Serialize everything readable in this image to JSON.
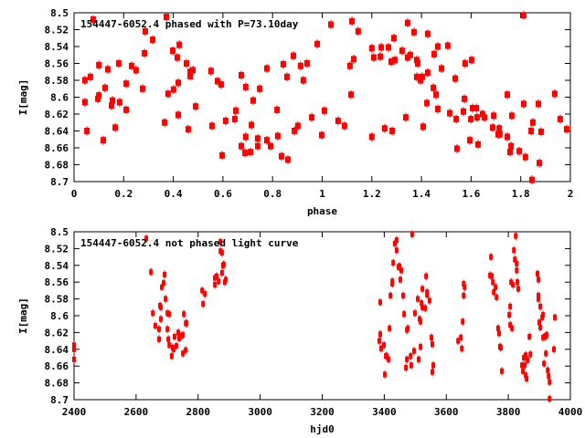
{
  "chart_data": [
    {
      "type": "scatter",
      "title": "154447-6052.4 phased with P=73.10day",
      "xlabel": "phase",
      "ylabel": "I[mag]",
      "xlim": [
        0,
        2
      ],
      "ylim": [
        8.5,
        8.7
      ],
      "y_inverted": true,
      "xticks": [
        "0",
        "0.2",
        "0.4",
        "0.6",
        "0.8",
        "1",
        "1.2",
        "1.4",
        "1.6",
        "1.8",
        "2"
      ],
      "yticks": [
        "8.5",
        "8.52",
        "8.54",
        "8.56",
        "8.58",
        "8.6",
        "8.62",
        "8.64",
        "8.66",
        "8.68",
        "8.7"
      ],
      "grid": false,
      "marker_color": "#ff0000",
      "points": [
        [
          0.044,
          8.606
        ],
        [
          0.044,
          8.58
        ],
        [
          0.052,
          8.64
        ],
        [
          0.066,
          8.576
        ],
        [
          0.077,
          8.508
        ],
        [
          0.096,
          8.602
        ],
        [
          0.1,
          8.598
        ],
        [
          0.1,
          8.562
        ],
        [
          0.118,
          8.651
        ],
        [
          0.125,
          8.589
        ],
        [
          0.136,
          8.567
        ],
        [
          0.151,
          8.61
        ],
        [
          0.155,
          8.604
        ],
        [
          0.166,
          8.636
        ],
        [
          0.18,
          8.56
        ],
        [
          0.184,
          8.606
        ],
        [
          0.21,
          8.615
        ],
        [
          0.21,
          8.584
        ],
        [
          0.232,
          8.563
        ],
        [
          0.25,
          8.568
        ],
        [
          0.276,
          8.59
        ],
        [
          0.284,
          8.548
        ],
        [
          0.287,
          8.522
        ],
        [
          0.317,
          8.532
        ],
        [
          0.365,
          8.63
        ],
        [
          0.372,
          8.505
        ],
        [
          0.379,
          8.596
        ],
        [
          0.398,
          8.545
        ],
        [
          0.401,
          8.591
        ],
        [
          0.416,
          8.553
        ],
        [
          0.42,
          8.583
        ],
        [
          0.424,
          8.538
        ],
        [
          0.42,
          8.621
        ],
        [
          0.453,
          8.56
        ],
        [
          0.46,
          8.638
        ],
        [
          0.468,
          8.57
        ],
        [
          0.468,
          8.575
        ],
        [
          0.479,
          8.568
        ],
        [
          0.49,
          8.611
        ],
        [
          0.552,
          8.569
        ],
        [
          0.556,
          8.634
        ],
        [
          0.578,
          8.581
        ],
        [
          0.593,
          8.585
        ],
        [
          0.597,
          8.669
        ],
        [
          0.611,
          8.628
        ],
        [
          0.648,
          8.626
        ],
        [
          0.652,
          8.616
        ],
        [
          0.674,
          8.574
        ],
        [
          0.674,
          8.658
        ],
        [
          0.689,
          8.666
        ],
        [
          0.692,
          8.588
        ],
        [
          0.692,
          8.647
        ],
        [
          0.711,
          8.665
        ],
        [
          0.715,
          8.633
        ],
        [
          0.722,
          8.604
        ],
        [
          0.74,
          8.658
        ],
        [
          0.74,
          8.649
        ],
        [
          0.748,
          8.59
        ],
        [
          0.777,
          8.566
        ],
        [
          0.777,
          8.651
        ],
        [
          0.792,
          8.658
        ],
        [
          0.818,
          8.615
        ],
        [
          0.821,
          8.646
        ],
        [
          0.836,
          8.67
        ],
        [
          0.843,
          8.561
        ],
        [
          0.858,
          8.576
        ],
        [
          0.862,
          8.674
        ],
        [
          0.884,
          8.551
        ],
        [
          0.888,
          8.64
        ],
        [
          0.902,
          8.634
        ],
        [
          0.913,
          8.563
        ],
        [
          0.924,
          8.58
        ],
        [
          0.939,
          8.56
        ],
        [
          0.958,
          8.624
        ],
        [
          0.98,
          8.537
        ],
        [
          0.998,
          8.645
        ],
        [
          1.009,
          8.616
        ],
        [
          1.035,
          8.514
        ],
        [
          1.064,
          8.628
        ],
        [
          1.09,
          8.634
        ],
        [
          1.112,
          8.563
        ],
        [
          1.116,
          8.597
        ],
        [
          1.12,
          8.51
        ],
        [
          1.127,
          8.555
        ],
        [
          1.145,
          8.522
        ],
        [
          1.2,
          8.542
        ],
        [
          1.2,
          8.647
        ],
        [
          1.208,
          8.553
        ],
        [
          1.234,
          8.552
        ],
        [
          1.238,
          8.541
        ],
        [
          1.252,
          8.637
        ],
        [
          1.267,
          8.541
        ],
        [
          1.278,
          8.558
        ],
        [
          1.282,
          8.64
        ],
        [
          1.289,
          8.53
        ],
        [
          1.293,
          8.556
        ],
        [
          1.322,
          8.545
        ],
        [
          1.337,
          8.624
        ],
        [
          1.344,
          8.553
        ],
        [
          1.344,
          8.512
        ],
        [
          1.355,
          8.55
        ],
        [
          1.37,
          8.523
        ],
        [
          1.381,
          8.576
        ],
        [
          1.381,
          8.556
        ],
        [
          1.385,
          8.56
        ],
        [
          1.396,
          8.58
        ],
        [
          1.403,
          8.576
        ],
        [
          1.407,
          8.635
        ],
        [
          1.422,
          8.607
        ],
        [
          1.425,
          8.525
        ],
        [
          1.425,
          8.571
        ],
        [
          1.448,
          8.589
        ],
        [
          1.451,
          8.549
        ],
        [
          1.459,
          8.597
        ],
        [
          1.466,
          8.614
        ],
        [
          1.466,
          8.54
        ],
        [
          1.481,
          8.566
        ],
        [
          1.506,
          8.539
        ],
        [
          1.514,
          8.619
        ],
        [
          1.536,
          8.578
        ],
        [
          1.54,
          8.626
        ],
        [
          1.543,
          8.661
        ],
        [
          1.573,
          8.602
        ],
        [
          1.576,
          8.56
        ],
        [
          1.569,
          8.617
        ],
        [
          1.595,
          8.651
        ],
        [
          1.599,
          8.626
        ],
        [
          1.602,
          8.556
        ],
        [
          1.606,
          8.613
        ],
        [
          1.621,
          8.613
        ],
        [
          1.624,
          8.624
        ],
        [
          1.628,
          8.656
        ],
        [
          1.646,
          8.62
        ],
        [
          1.654,
          8.624
        ],
        [
          1.687,
          8.636
        ],
        [
          1.691,
          8.622
        ],
        [
          1.709,
          8.644
        ],
        [
          1.713,
          8.637
        ],
        [
          1.716,
          8.644
        ],
        [
          1.746,
          8.647
        ],
        [
          1.746,
          8.597
        ],
        [
          1.757,
          8.665
        ],
        [
          1.761,
          8.658
        ],
        [
          1.764,
          8.622
        ],
        [
          1.794,
          8.664
        ],
        [
          1.812,
          8.503
        ],
        [
          1.812,
          8.608
        ],
        [
          1.819,
          8.671
        ],
        [
          1.842,
          8.64
        ],
        [
          1.845,
          8.698
        ],
        [
          1.849,
          8.63
        ],
        [
          1.871,
          8.608
        ],
        [
          1.875,
          8.678
        ],
        [
          1.882,
          8.641
        ],
        [
          1.937,
          8.596
        ],
        [
          1.959,
          8.626
        ],
        [
          1.985,
          8.638
        ]
      ]
    },
    {
      "type": "scatter",
      "title": "154447-6052.4 not phased light curve",
      "xlabel": "hjd0",
      "ylabel": "I[mag]",
      "xlim": [
        2400,
        4000
      ],
      "ylim": [
        8.5,
        8.7
      ],
      "y_inverted": true,
      "xticks": [
        "2400",
        "2600",
        "2800",
        "3000",
        "3200",
        "3400",
        "3600",
        "3800",
        "4000"
      ],
      "yticks": [
        "8.5",
        "8.52",
        "8.54",
        "8.56",
        "8.58",
        "8.6",
        "8.62",
        "8.64",
        "8.66",
        "8.68",
        "8.7"
      ],
      "grid": false,
      "marker_color": "#ff0000",
      "points": [
        [
          2400,
          8.635
        ],
        [
          2400,
          8.64
        ],
        [
          2400,
          8.652
        ],
        [
          2633,
          8.508
        ],
        [
          2648,
          8.548
        ],
        [
          2654,
          8.597
        ],
        [
          2662,
          8.612
        ],
        [
          2674,
          8.628
        ],
        [
          2674,
          8.616
        ],
        [
          2677,
          8.588
        ],
        [
          2680,
          8.59
        ],
        [
          2680,
          8.604
        ],
        [
          2683,
          8.566
        ],
        [
          2689,
          8.561
        ],
        [
          2692,
          8.551
        ],
        [
          2695,
          8.58
        ],
        [
          2701,
          8.597
        ],
        [
          2701,
          8.616
        ],
        [
          2704,
          8.628
        ],
        [
          2707,
          8.598
        ],
        [
          2707,
          8.635
        ],
        [
          2715,
          8.648
        ],
        [
          2718,
          8.638
        ],
        [
          2721,
          8.64
        ],
        [
          2724,
          8.625
        ],
        [
          2730,
          8.636
        ],
        [
          2736,
          8.62
        ],
        [
          2739,
          8.627
        ],
        [
          2745,
          8.624
        ],
        [
          2751,
          8.623
        ],
        [
          2751,
          8.645
        ],
        [
          2754,
          8.598
        ],
        [
          2760,
          8.641
        ],
        [
          2760,
          8.609
        ],
        [
          2763,
          8.609
        ],
        [
          2813,
          8.57
        ],
        [
          2816,
          8.586
        ],
        [
          2822,
          8.574
        ],
        [
          2854,
          8.563
        ],
        [
          2854,
          8.555
        ],
        [
          2860,
          8.553
        ],
        [
          2866,
          8.559
        ],
        [
          2872,
          8.512
        ],
        [
          2872,
          8.523
        ],
        [
          2877,
          8.525
        ],
        [
          2877,
          8.549
        ],
        [
          2880,
          8.54
        ],
        [
          2883,
          8.539
        ],
        [
          2886,
          8.56
        ],
        [
          2889,
          8.557
        ],
        [
          3384,
          8.63
        ],
        [
          3387,
          8.584
        ],
        [
          3387,
          8.622
        ],
        [
          3390,
          8.639
        ],
        [
          3399,
          8.635
        ],
        [
          3402,
          8.67
        ],
        [
          3405,
          8.648
        ],
        [
          3408,
          8.648
        ],
        [
          3414,
          8.652
        ],
        [
          3417,
          8.615
        ],
        [
          3420,
          8.576
        ],
        [
          3426,
          8.559
        ],
        [
          3426,
          8.562
        ],
        [
          3429,
          8.537
        ],
        [
          3434,
          8.514
        ],
        [
          3440,
          8.51
        ],
        [
          3440,
          8.522
        ],
        [
          3446,
          8.542
        ],
        [
          3449,
          8.541
        ],
        [
          3452,
          8.557
        ],
        [
          3455,
          8.546
        ],
        [
          3461,
          8.576
        ],
        [
          3464,
          8.598
        ],
        [
          3470,
          8.662
        ],
        [
          3473,
          8.617
        ],
        [
          3473,
          8.652
        ],
        [
          3476,
          8.615
        ],
        [
          3485,
          8.648
        ],
        [
          3487,
          8.659
        ],
        [
          3490,
          8.503
        ],
        [
          3496,
          8.642
        ],
        [
          3499,
          8.597
        ],
        [
          3508,
          8.58
        ],
        [
          3511,
          8.652
        ],
        [
          3514,
          8.604
        ],
        [
          3517,
          8.607
        ],
        [
          3517,
          8.637
        ],
        [
          3520,
          8.585
        ],
        [
          3523,
          8.568
        ],
        [
          3523,
          8.59
        ],
        [
          3532,
          8.591
        ],
        [
          3535,
          8.553
        ],
        [
          3538,
          8.572
        ],
        [
          3538,
          8.575
        ],
        [
          3546,
          8.582
        ],
        [
          3552,
          8.626
        ],
        [
          3555,
          8.634
        ],
        [
          3555,
          8.667
        ],
        [
          3558,
          8.659
        ],
        [
          3638,
          8.63
        ],
        [
          3647,
          8.626
        ],
        [
          3650,
          8.639
        ],
        [
          3653,
          8.607
        ],
        [
          3656,
          8.562
        ],
        [
          3656,
          8.576
        ],
        [
          3659,
          8.566
        ],
        [
          3741,
          8.552
        ],
        [
          3744,
          8.53
        ],
        [
          3747,
          8.553
        ],
        [
          3750,
          8.56
        ],
        [
          3753,
          8.572
        ],
        [
          3759,
          8.566
        ],
        [
          3762,
          8.578
        ],
        [
          3767,
          8.615
        ],
        [
          3770,
          8.621
        ],
        [
          3773,
          8.637
        ],
        [
          3776,
          8.638
        ],
        [
          3779,
          8.666
        ],
        [
          3803,
          8.599
        ],
        [
          3806,
          8.589
        ],
        [
          3806,
          8.611
        ],
        [
          3809,
          8.56
        ],
        [
          3812,
          8.615
        ],
        [
          3815,
          8.563
        ],
        [
          3818,
          8.522
        ],
        [
          3821,
          8.533
        ],
        [
          3824,
          8.505
        ],
        [
          3827,
          8.538
        ],
        [
          3827,
          8.546
        ],
        [
          3829,
          8.56
        ],
        [
          3832,
          8.568
        ],
        [
          3844,
          8.659
        ],
        [
          3847,
          8.666
        ],
        [
          3850,
          8.65
        ],
        [
          3853,
          8.659
        ],
        [
          3856,
          8.647
        ],
        [
          3856,
          8.671
        ],
        [
          3859,
          8.675
        ],
        [
          3862,
          8.653
        ],
        [
          3868,
          8.625
        ],
        [
          3871,
          8.646
        ],
        [
          3894,
          8.55
        ],
        [
          3897,
          8.557
        ],
        [
          3897,
          8.576
        ],
        [
          3897,
          8.58
        ],
        [
          3900,
          8.608
        ],
        [
          3903,
          8.589
        ],
        [
          3903,
          8.614
        ],
        [
          3909,
          8.602
        ],
        [
          3912,
          8.599
        ],
        [
          3912,
          8.626
        ],
        [
          3915,
          8.657
        ],
        [
          3918,
          8.625
        ],
        [
          3921,
          8.624
        ],
        [
          3921,
          8.645
        ],
        [
          3924,
          8.623
        ],
        [
          3927,
          8.665
        ],
        [
          3930,
          8.672
        ],
        [
          3933,
          8.679
        ],
        [
          3933,
          8.699
        ],
        [
          3947,
          8.64
        ],
        [
          3950,
          8.602
        ]
      ]
    }
  ]
}
